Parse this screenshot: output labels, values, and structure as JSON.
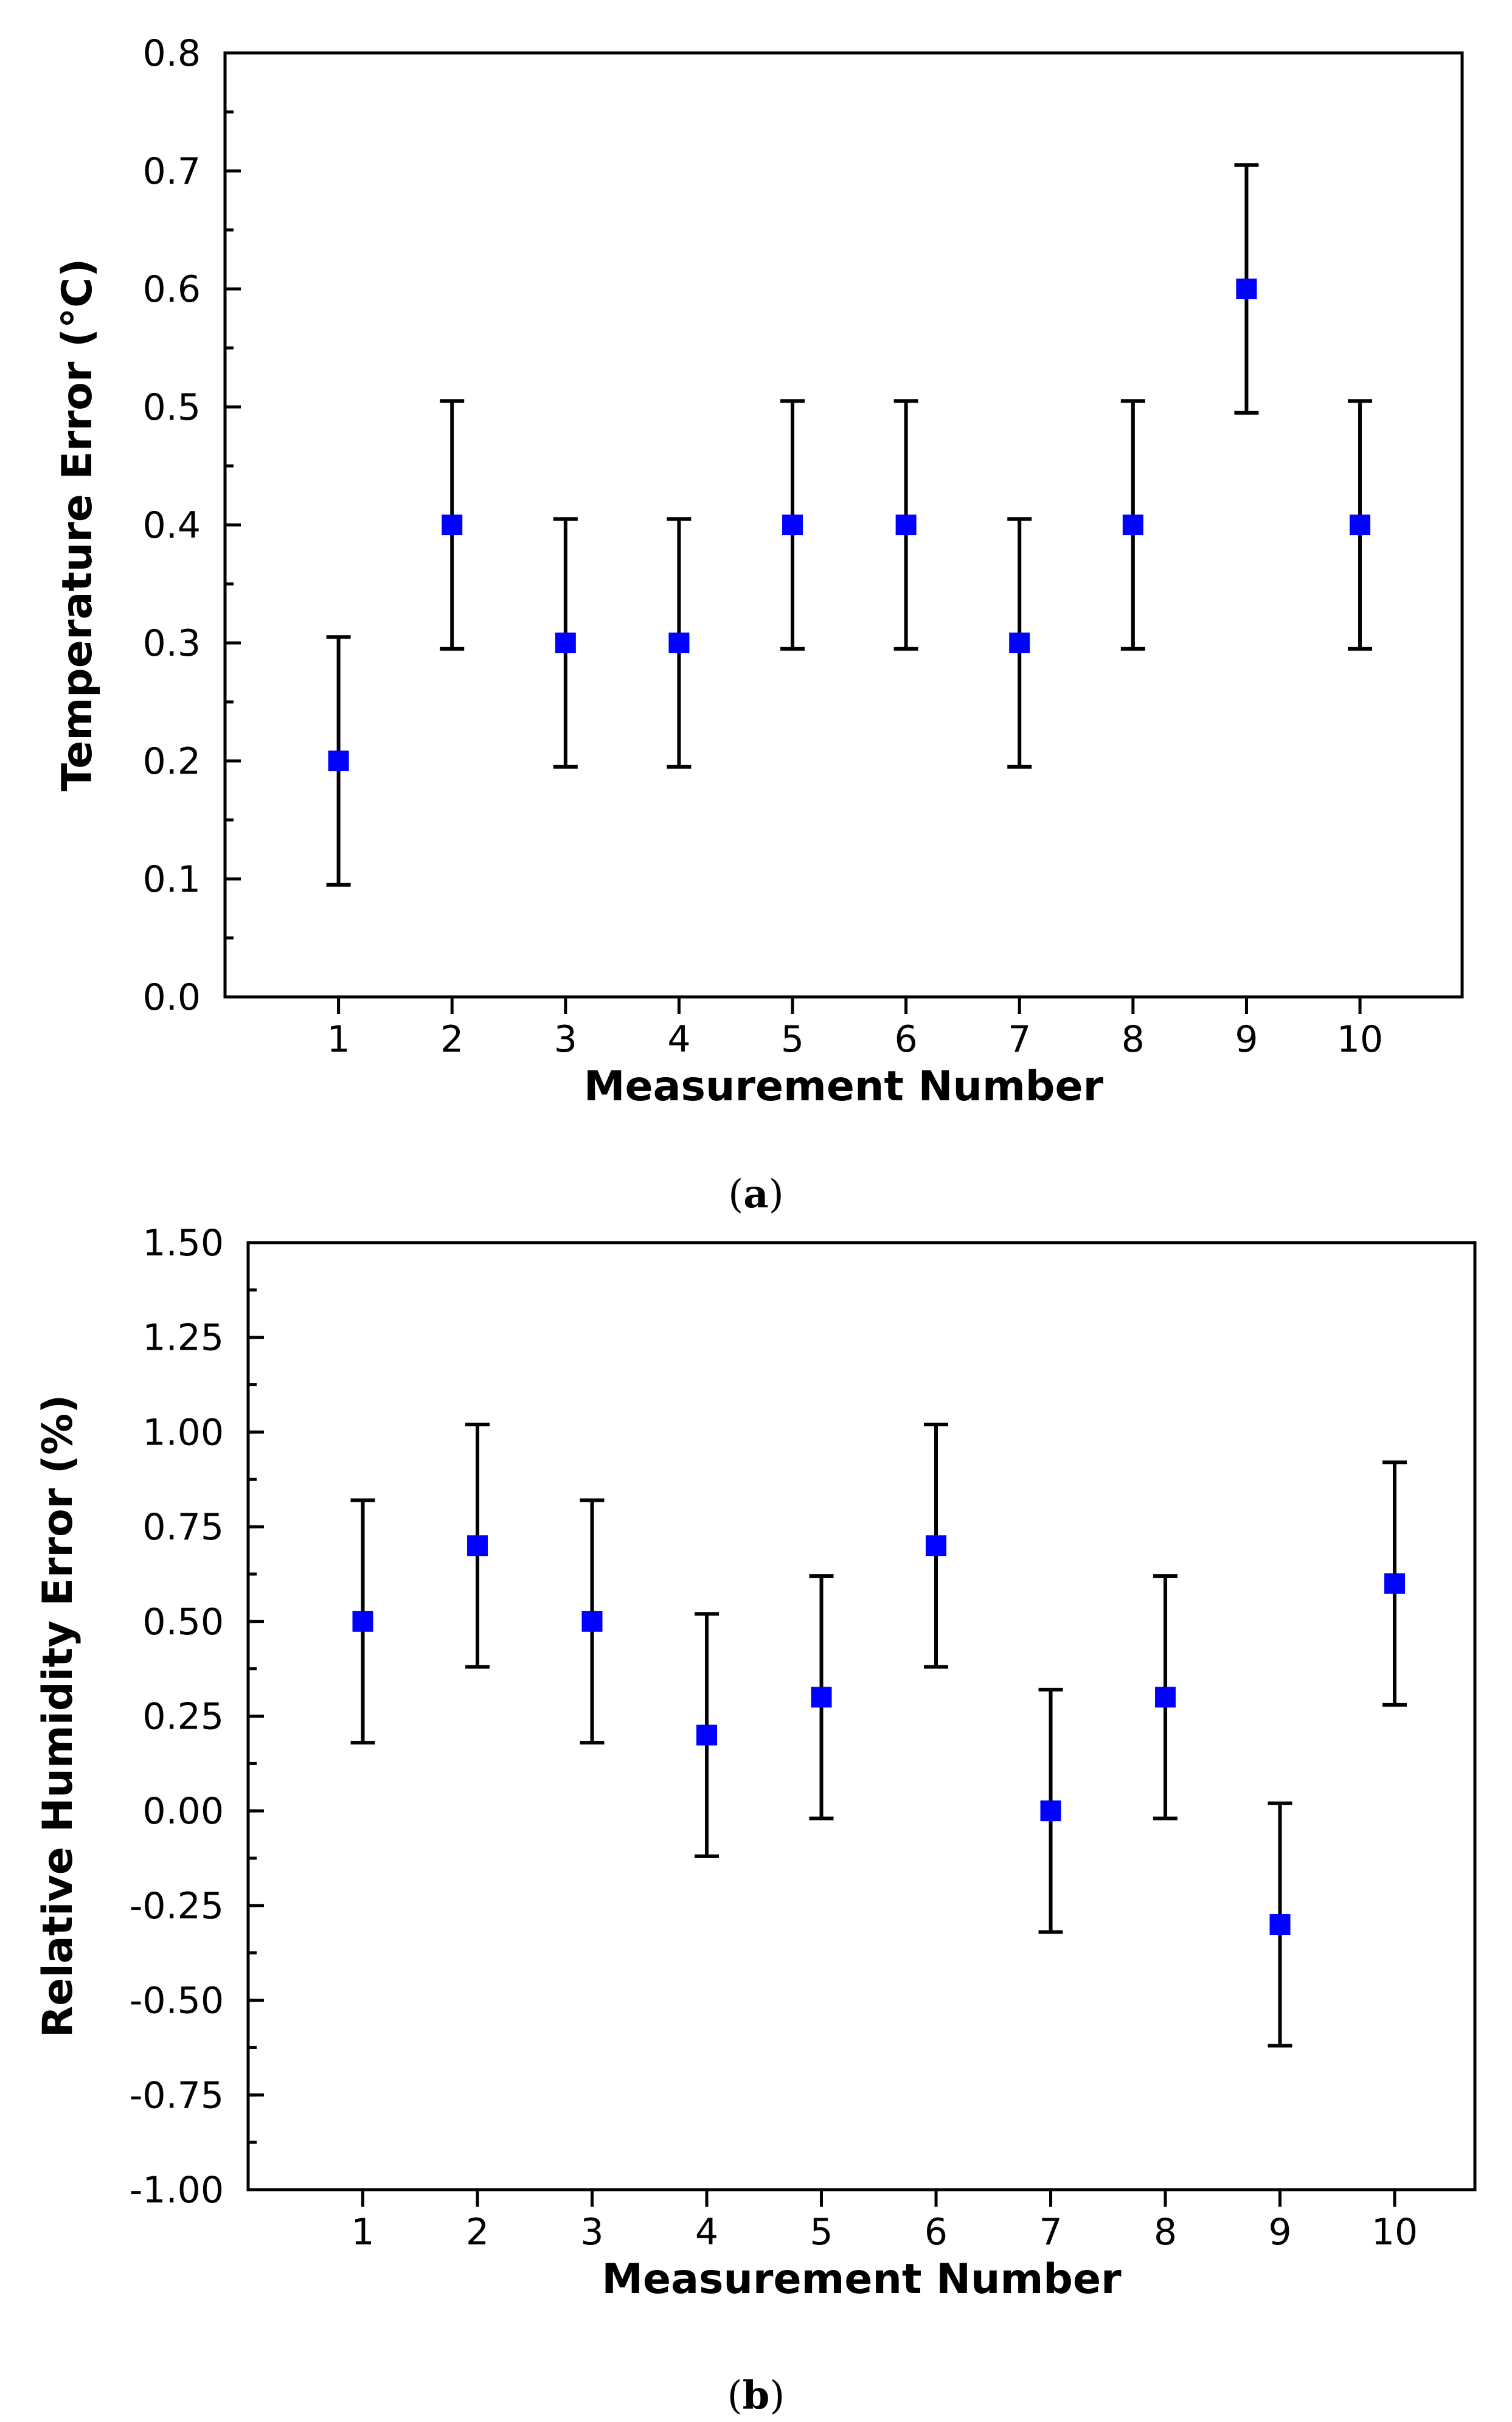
{
  "chart_data": [
    {
      "type": "scatter",
      "panel_label": "a",
      "title": "",
      "xlabel": "Measurement Number",
      "ylabel": "Temperature Error  (°C)",
      "xlim": [
        0,
        10.9
      ],
      "ylim": [
        0.0,
        0.8
      ],
      "x_ticks": [
        1,
        2,
        3,
        4,
        5,
        6,
        7,
        8,
        9,
        10
      ],
      "x_tick_labels": [
        "1",
        "2",
        "3",
        "4",
        "5",
        "6",
        "7",
        "8",
        "9",
        "10"
      ],
      "y_ticks": [
        0.0,
        0.1,
        0.2,
        0.3,
        0.4,
        0.5,
        0.6,
        0.7,
        0.8
      ],
      "y_tick_labels": [
        "0.0",
        "0.1",
        "0.2",
        "0.3",
        "0.4",
        "0.5",
        "0.6",
        "0.7",
        "0.8"
      ],
      "y_minor_step": 0.05,
      "grid": false,
      "marker_color": "#0000ff",
      "series": [
        {
          "name": "Temperature Error",
          "x": [
            1,
            2,
            3,
            4,
            5,
            6,
            7,
            8,
            9,
            10
          ],
          "y": [
            0.2,
            0.4,
            0.3,
            0.3,
            0.4,
            0.4,
            0.3,
            0.4,
            0.6,
            0.4
          ],
          "error": [
            0.105,
            0.105,
            0.105,
            0.105,
            0.105,
            0.105,
            0.105,
            0.105,
            0.105,
            0.105
          ]
        }
      ]
    },
    {
      "type": "scatter",
      "panel_label": "b",
      "title": "",
      "xlabel": "Measurement Number",
      "ylabel": "Relative Humidity Error (%)",
      "xlim": [
        0,
        10.7
      ],
      "ylim": [
        -1.0,
        1.5
      ],
      "x_ticks": [
        1,
        2,
        3,
        4,
        5,
        6,
        7,
        8,
        9,
        10
      ],
      "x_tick_labels": [
        "1",
        "2",
        "3",
        "4",
        "5",
        "6",
        "7",
        "8",
        "9",
        "10"
      ],
      "y_ticks": [
        -1.0,
        -0.75,
        -0.5,
        -0.25,
        0.0,
        0.25,
        0.5,
        0.75,
        1.0,
        1.25,
        1.5
      ],
      "y_tick_labels": [
        "-1.00",
        "-0.75",
        "-0.50",
        "-0.25",
        "0.00",
        "0.25",
        "0.50",
        "0.75",
        "1.00",
        "1.25",
        "1.50"
      ],
      "y_minor_step": 0.125,
      "grid": false,
      "marker_color": "#0000ff",
      "series": [
        {
          "name": "Relative Humidity Error",
          "x": [
            1,
            2,
            3,
            4,
            5,
            6,
            7,
            8,
            9,
            10
          ],
          "y": [
            0.5,
            0.7,
            0.5,
            0.2,
            0.3,
            0.7,
            0.0,
            0.3,
            -0.3,
            0.6
          ],
          "error": [
            0.32,
            0.32,
            0.32,
            0.32,
            0.32,
            0.32,
            0.32,
            0.32,
            0.32,
            0.32
          ]
        }
      ]
    }
  ]
}
